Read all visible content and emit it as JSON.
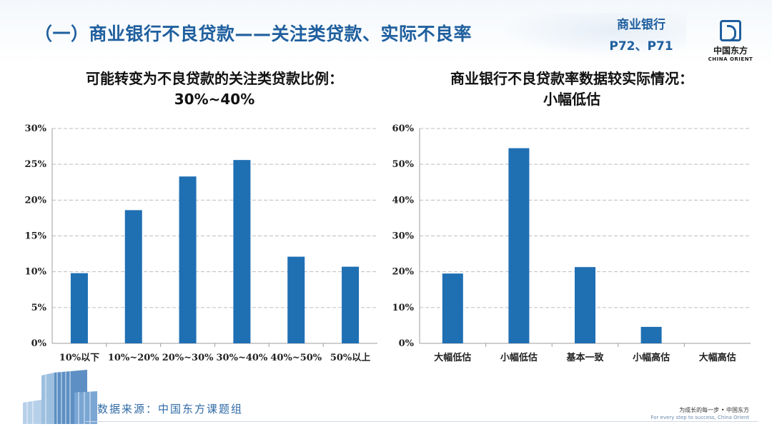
{
  "header": {
    "title": "（一）商业银行不良贷款——关注类贷款、实际不良率",
    "ref_line1": "商业银行",
    "ref_line2": "P72、P71"
  },
  "logo": {
    "name_cn": "中国东方",
    "name_en": "CHINA ORIENT"
  },
  "footer": {
    "source": "数据来源：中国东方课题组",
    "slogan_cn": "为成长的每一步 • 中国东方",
    "slogan_en": "For every step to success, China Orient"
  },
  "colors": {
    "bar": "#1f6fb3",
    "accent": "#1f5f9e"
  },
  "chart_data": [
    {
      "type": "bar",
      "title_line1": "可能转变为不良贷款的关注类贷款比例：",
      "title_line2": "30%~40%",
      "categories": [
        "10%以下",
        "10%~20%",
        "20%~30%",
        "30%~40%",
        "40%~50%",
        "50%以上"
      ],
      "values": [
        9.8,
        18.6,
        23.3,
        25.6,
        12.1,
        10.7
      ],
      "ylim": [
        0,
        30
      ],
      "yticks": [
        "0%",
        "5%",
        "10%",
        "15%",
        "20%",
        "25%",
        "30%"
      ],
      "grid": true
    },
    {
      "type": "bar",
      "title_line1": "商业银行不良贷款率数据较实际情况：",
      "title_line2": "小幅低估",
      "categories": [
        "大幅低估",
        "小幅低估",
        "基本一致",
        "小幅高估",
        "大幅高估"
      ],
      "values": [
        19.5,
        54.5,
        21.3,
        4.6,
        0
      ],
      "ylim": [
        0,
        60
      ],
      "yticks": [
        "0%",
        "10%",
        "20%",
        "30%",
        "40%",
        "50%",
        "60%"
      ],
      "grid": true
    }
  ]
}
